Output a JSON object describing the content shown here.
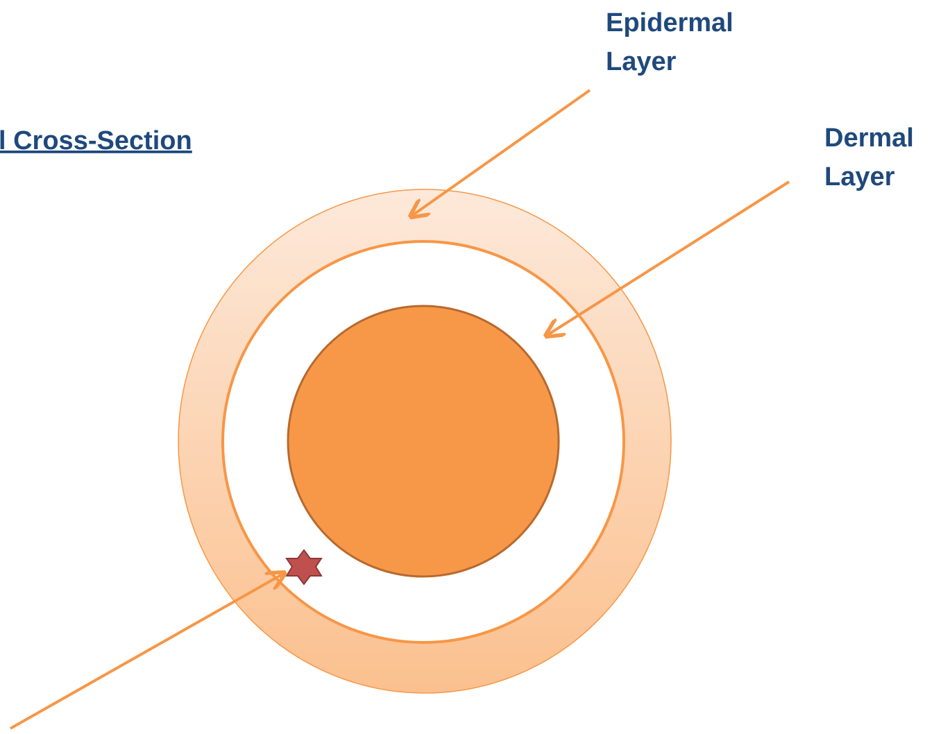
{
  "title": "l Cross-Section",
  "labels": {
    "epidermal": {
      "lines": [
        "Epidermal",
        "Layer"
      ]
    },
    "dermal": {
      "lines": [
        "Dermal",
        "Layer"
      ]
    }
  }
}
